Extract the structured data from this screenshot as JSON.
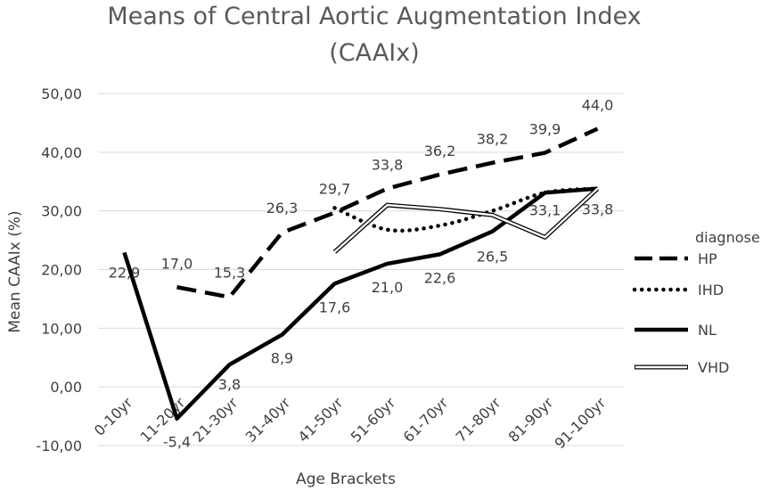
{
  "chart_data": {
    "type": "line",
    "title_lines": [
      "Means of Central Aortic Augmentation Index",
      "(CAAIx)"
    ],
    "xlabel": "Age Brackets",
    "ylabel": "Mean CAAIx (%)",
    "ylim": [
      -10,
      50
    ],
    "yticks": [
      -10,
      0,
      10,
      20,
      30,
      40,
      50
    ],
    "ytick_labels": [
      "-10,00",
      "0,00",
      "10,00",
      "20,00",
      "30,00",
      "40,00",
      "50,00"
    ],
    "grid": true,
    "categories": [
      "0-10yr",
      "11-20yr",
      "21-30yr",
      "31-40yr",
      "41-50yr",
      "51-60yr",
      "61-70yr",
      "71-80yr",
      "81-90yr",
      "91-100yr"
    ],
    "legend_title": "diagnose",
    "legend_position": "right",
    "series": [
      {
        "name": "HP",
        "style": "dashed",
        "color": "#000000",
        "values": [
          null,
          17.0,
          15.3,
          26.3,
          29.7,
          33.8,
          36.2,
          38.2,
          39.9,
          44.0
        ],
        "labels": [
          null,
          "17,0",
          "15,3",
          "26,3",
          "29,7",
          "33,8",
          "36,2",
          "38,2",
          "39,9",
          "44,0"
        ]
      },
      {
        "name": "IHD",
        "style": "dotted",
        "color": "#000000",
        "values": [
          null,
          null,
          null,
          null,
          30.5,
          26.8,
          27.5,
          30.0,
          33.1,
          33.8
        ],
        "labels": [
          null,
          null,
          null,
          null,
          null,
          null,
          null,
          null,
          null,
          null
        ]
      },
      {
        "name": "NL",
        "style": "solid",
        "color": "#000000",
        "values": [
          22.9,
          -5.4,
          3.8,
          8.9,
          17.6,
          21.0,
          22.6,
          26.5,
          33.1,
          33.8
        ],
        "labels": [
          "22,9",
          "-5,4",
          "3,8",
          "8,9",
          "17,6",
          "21,0",
          "22,6",
          "26,5",
          "33,1",
          "33,8"
        ]
      },
      {
        "name": "VHD",
        "style": "double",
        "color": "#000000",
        "values": [
          null,
          null,
          null,
          null,
          23.0,
          31.0,
          30.3,
          29.3,
          25.5,
          33.8
        ],
        "labels": [
          null,
          null,
          null,
          null,
          null,
          null,
          null,
          null,
          null,
          null
        ]
      }
    ]
  }
}
